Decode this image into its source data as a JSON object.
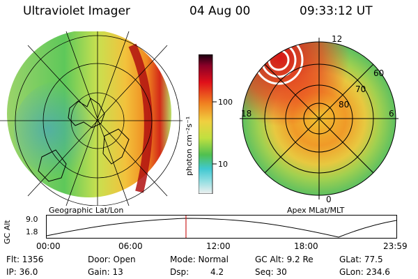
{
  "header": {
    "title": "Ultraviolet Imager",
    "date": "04 Aug 00",
    "time": "09:33:12 UT"
  },
  "colorbar": {
    "unit_label": "photon cm⁻²s⁻¹",
    "tick_high": "100",
    "tick_low": "10"
  },
  "left_map": {
    "caption": "Geographic Lat/Lon"
  },
  "right_map": {
    "caption": "Apex MLat/MLT",
    "mlt_top": "12",
    "mlt_left": "18",
    "mlt_right": "6",
    "mlt_bottom": "0",
    "lat_60": "60",
    "lat_70": "70",
    "lat_80": "80"
  },
  "altitude_plot": {
    "ylabel": "GC Alt",
    "ytick_top": "9.0",
    "ytick_bottom": "1.8",
    "xticks": [
      "00:00",
      "06:00",
      "12:00",
      "18:00",
      "23:59"
    ],
    "current_time_marker": "09:33:12"
  },
  "info": {
    "flt": "Flt: 1356",
    "door": "Door: Open",
    "mode": "Mode: Normal",
    "gcalt": "GC Alt: 9.2 Re",
    "glat": "GLat:  77.5",
    "ip": "IP: 36.0",
    "gain": "Gain: 13",
    "dsp_label": "Dsp:",
    "dsp_value": "4.2",
    "seq": "Seq: 30",
    "glon": "GLon: 234.6"
  },
  "colors": {
    "marker": "#cc2222",
    "line": "#000000"
  }
}
